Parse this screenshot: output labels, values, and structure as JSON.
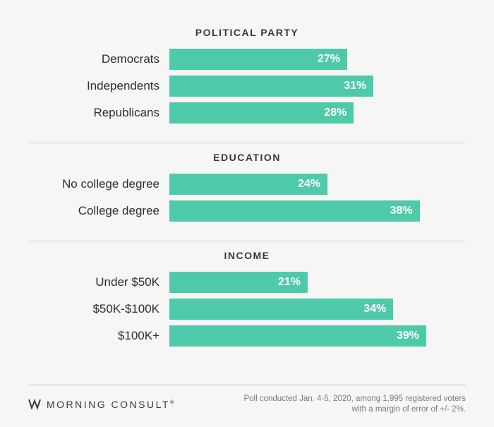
{
  "chart": {
    "type": "bar",
    "bar_color": "#4ec9a9",
    "value_color": "#ffffff",
    "background_color": "#f6f6f4",
    "divider_color": "#d6d6d2",
    "text_color": "#2e2e2e",
    "title_fontsize": 14,
    "label_fontsize": 17,
    "value_fontsize": 16,
    "x_max": 45,
    "sections": [
      {
        "title": "POLITICAL PARTY",
        "rows": [
          {
            "label": "Democrats",
            "value": 27,
            "display": "27%"
          },
          {
            "label": "Independents",
            "value": 31,
            "display": "31%"
          },
          {
            "label": "Republicans",
            "value": 28,
            "display": "28%"
          }
        ]
      },
      {
        "title": "EDUCATION",
        "rows": [
          {
            "label": "No college degree",
            "value": 24,
            "display": "24%"
          },
          {
            "label": "College degree",
            "value": 38,
            "display": "38%"
          }
        ]
      },
      {
        "title": "INCOME",
        "rows": [
          {
            "label": "Under $50K",
            "value": 21,
            "display": "21%"
          },
          {
            "label": "$50K-$100K",
            "value": 34,
            "display": "34%"
          },
          {
            "label": "$100K+",
            "value": 39,
            "display": "39%"
          }
        ]
      }
    ]
  },
  "brand": {
    "name": "MORNING CONSULT"
  },
  "footnote": "Poll conducted Jan. 4-5, 2020, among 1,995 registered voters with a margin of error of +/- 2%."
}
